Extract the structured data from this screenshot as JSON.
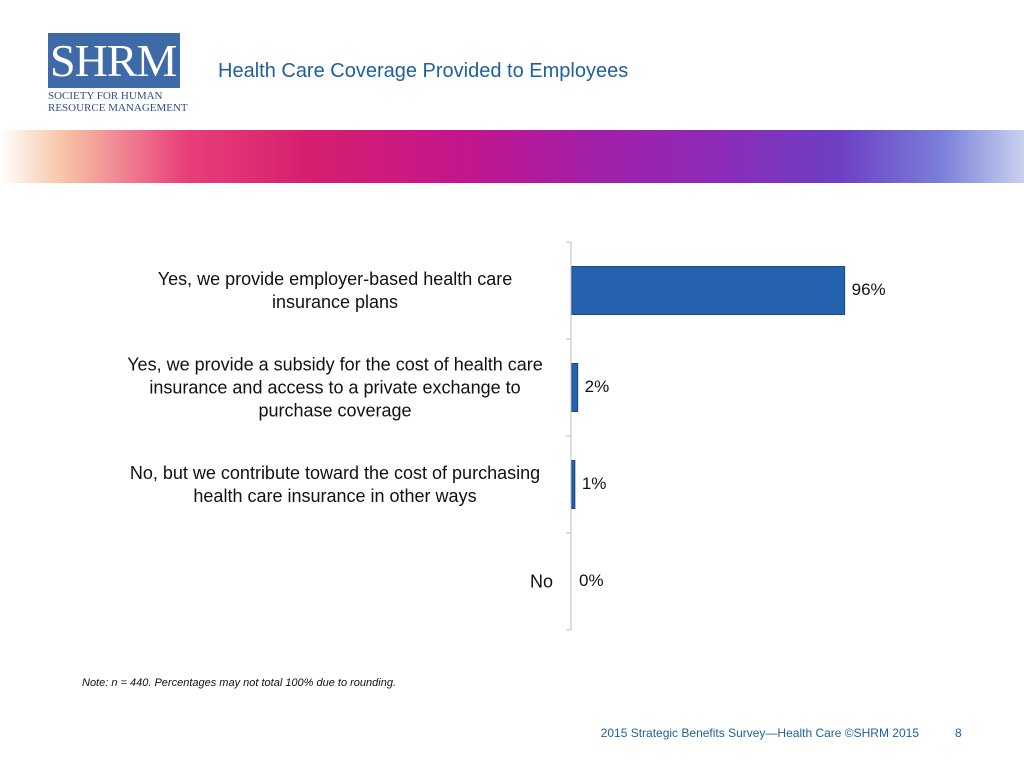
{
  "header": {
    "logo_text": "SHRM",
    "logo_subtitle": [
      "SOCIETY FOR HUMAN",
      "RESOURCE MANAGEMENT"
    ]
  },
  "chart_data": {
    "type": "bar",
    "orientation": "horizontal",
    "title": "Health Care Coverage Provided to Employees",
    "categories": [
      "Yes, we provide employer-based health care insurance plans",
      "Yes, we provide a subsidy for the cost of health care insurance and access to a private exchange to purchase coverage",
      "No, but we contribute toward the cost of purchasing health care insurance in other ways",
      "No"
    ],
    "values": [
      96,
      2,
      1,
      0
    ],
    "value_labels": [
      "96%",
      "2%",
      "1%",
      "0%"
    ],
    "color": "#2462ad",
    "xlim": [
      0,
      100
    ]
  },
  "note": "Note: n = 440. Percentages may not total 100% due to rounding.",
  "footer": {
    "source": "2015 Strategic Benefits Survey—Health Care ©SHRM 2015",
    "page": "8"
  }
}
